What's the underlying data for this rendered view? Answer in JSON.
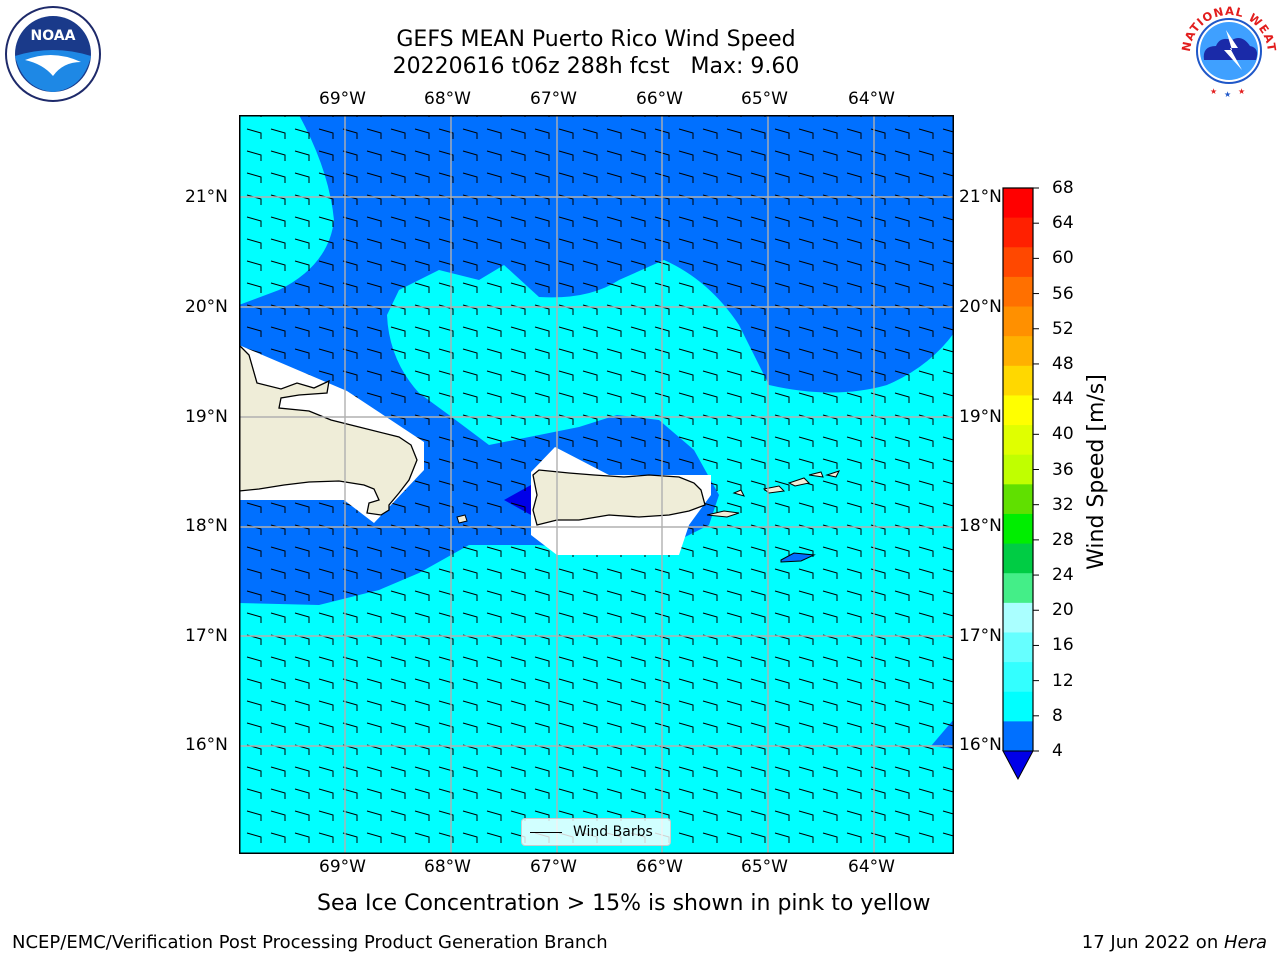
{
  "title_line1": "GEFS MEAN Puerto Rico Wind Speed",
  "title_line2": "20220616 t06z 288h fcst   Max: 9.60",
  "lon_labels": [
    "69°W",
    "68°W",
    "67°W",
    "66°W",
    "65°W",
    "64°W"
  ],
  "lat_labels": [
    "21°N",
    "20°N",
    "19°N",
    "18°N",
    "17°N",
    "16°N"
  ],
  "colorbar": {
    "label": "Wind Speed [m/s]",
    "ticks": [
      "68",
      "64",
      "60",
      "56",
      "52",
      "48",
      "44",
      "40",
      "36",
      "32",
      "28",
      "24",
      "20",
      "16",
      "12",
      "8",
      "4"
    ],
    "colors": [
      "#ff0000",
      "#ff2000",
      "#ff4800",
      "#ff7000",
      "#ff9000",
      "#ffb000",
      "#ffd800",
      "#ffff00",
      "#e0ff00",
      "#c0ff00",
      "#60e000",
      "#00ee00",
      "#00cc44",
      "#44ee88",
      "#aaffff",
      "#66ffff",
      "#33ffff",
      "#00ffff",
      "#0070ff",
      "#0000e8"
    ]
  },
  "legend_label": "Wind Barbs",
  "sea_ice_note": "Sea Ice Concentration > 15% is shown in pink to yellow",
  "footer_left": "NCEP/EMC/Verification Post Processing Product Generation Branch",
  "footer_right_prefix": "17 Jun 2022 on ",
  "footer_right_host": "Hera",
  "logo_left_text": "NOAA",
  "logo_right_text": "NATIONAL WEATHER SERVICE",
  "colors": {
    "ocean_light": "#00ffff",
    "ocean_mid": "#0070ff",
    "ocean_deep": "#0000e8",
    "land": "#efedd8",
    "grid": "#b0b0b0"
  }
}
